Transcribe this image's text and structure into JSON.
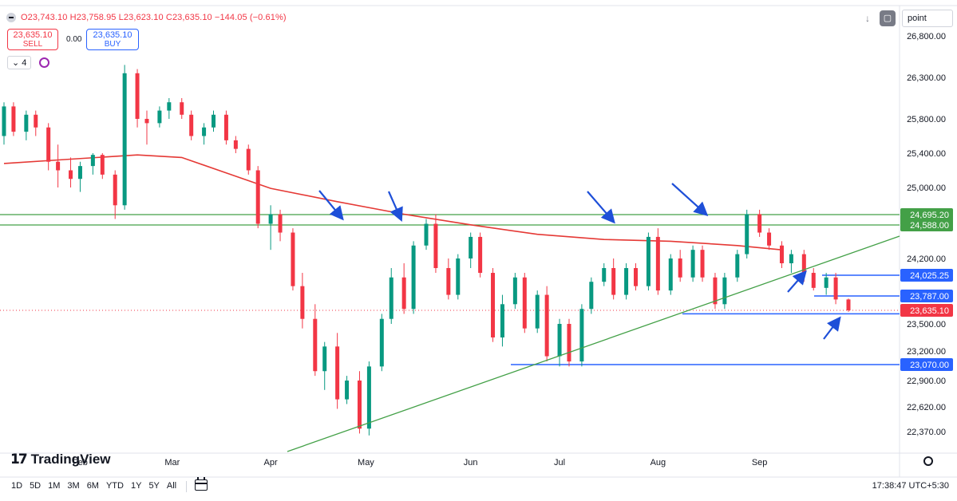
{
  "header": {
    "ohlc": "O23,743.10 H23,758.95 L23,623.10 C23,635.10 −144.05 (−0.61%)",
    "sell_price": "23,635.10",
    "sell_label": "SELL",
    "spread": "0.00",
    "buy_price": "23,635.10",
    "buy_label": "BUY",
    "indicator_count": "4",
    "scale_select": "point"
  },
  "logo_text": "TradingView",
  "ranges": [
    "1D",
    "5D",
    "1M",
    "3M",
    "6M",
    "YTD",
    "1Y",
    "5Y",
    "All"
  ],
  "clock": "17:38:47 UTC+5:30",
  "colors": {
    "up": "#089981",
    "down": "#f23645",
    "ma": "#e53935",
    "support": "#2962ff",
    "resistance": "#43a047",
    "trend": "#43a047",
    "arrow": "#1e4fd8"
  },
  "chart_data": {
    "type": "candlestick",
    "y_ticks": [
      "26,800.00",
      "26,300.00",
      "25,800.00",
      "25,400.00",
      "25,000.00",
      "24,200.00",
      "23,500.00",
      "23,200.00",
      "22,900.00",
      "22,620.00",
      "22,370.00"
    ],
    "x_ticks": [
      {
        "label": "Feb",
        "date": "2024-02-01"
      },
      {
        "label": "Mar",
        "date": "2024-03-01"
      },
      {
        "label": "Apr",
        "date": "2024-04-01"
      },
      {
        "label": "May",
        "date": "2024-05-01"
      },
      {
        "label": "Jun",
        "date": "2024-06-03"
      },
      {
        "label": "Jul",
        "date": "2024-07-01"
      },
      {
        "label": "Aug",
        "date": "2024-08-01"
      },
      {
        "label": "Sep",
        "date": "2024-09-02"
      }
    ],
    "price_labels": [
      {
        "value": "24,695.20",
        "kind": "resistance"
      },
      {
        "value": "24,588.00",
        "kind": "resistance"
      },
      {
        "value": "24,025.25",
        "kind": "support"
      },
      {
        "value": "23,787.00",
        "kind": "support"
      },
      {
        "value": "23,635.10",
        "kind": "last"
      },
      {
        "value": "23,070.00",
        "kind": "support"
      }
    ],
    "last_price": 23635.1,
    "ma_200": [
      {
        "date": "2024-01-08",
        "value": 25280
      },
      {
        "date": "2024-01-29",
        "value": 25330
      },
      {
        "date": "2024-02-19",
        "value": 25380
      },
      {
        "date": "2024-03-04",
        "value": 25350
      },
      {
        "date": "2024-03-18",
        "value": 25170
      },
      {
        "date": "2024-04-01",
        "value": 24990
      },
      {
        "date": "2024-04-22",
        "value": 24840
      },
      {
        "date": "2024-05-13",
        "value": 24700
      },
      {
        "date": "2024-06-03",
        "value": 24590
      },
      {
        "date": "2024-06-24",
        "value": 24480
      },
      {
        "date": "2024-07-15",
        "value": 24420
      },
      {
        "date": "2024-08-05",
        "value": 24400
      },
      {
        "date": "2024-08-26",
        "value": 24350
      },
      {
        "date": "2024-09-09",
        "value": 24300
      }
    ],
    "candles": [
      {
        "date": "2024-01-08",
        "o": 25600,
        "h": 26000,
        "l": 25500,
        "c": 25950
      },
      {
        "date": "2024-01-11",
        "o": 25950,
        "h": 26000,
        "l": 25600,
        "c": 25650
      },
      {
        "date": "2024-01-15",
        "o": 25650,
        "h": 25900,
        "l": 25550,
        "c": 25850
      },
      {
        "date": "2024-01-18",
        "o": 25850,
        "h": 25900,
        "l": 25600,
        "c": 25700
      },
      {
        "date": "2024-01-22",
        "o": 25700,
        "h": 25750,
        "l": 25200,
        "c": 25300
      },
      {
        "date": "2024-01-25",
        "o": 25300,
        "h": 25500,
        "l": 25000,
        "c": 25200
      },
      {
        "date": "2024-01-29",
        "o": 25200,
        "h": 25350,
        "l": 25000,
        "c": 25100
      },
      {
        "date": "2024-02-01",
        "o": 25100,
        "h": 25300,
        "l": 24950,
        "c": 25250
      },
      {
        "date": "2024-02-05",
        "o": 25250,
        "h": 25400,
        "l": 25150,
        "c": 25380
      },
      {
        "date": "2024-02-08",
        "o": 25380,
        "h": 25400,
        "l": 25100,
        "c": 25150
      },
      {
        "date": "2024-02-12",
        "o": 25150,
        "h": 25200,
        "l": 24650,
        "c": 24800
      },
      {
        "date": "2024-02-15",
        "o": 24800,
        "h": 26450,
        "l": 24750,
        "c": 26350
      },
      {
        "date": "2024-02-19",
        "o": 26350,
        "h": 26400,
        "l": 25700,
        "c": 25800
      },
      {
        "date": "2024-02-22",
        "o": 25800,
        "h": 25900,
        "l": 25500,
        "c": 25750
      },
      {
        "date": "2024-02-26",
        "o": 25750,
        "h": 25950,
        "l": 25700,
        "c": 25900
      },
      {
        "date": "2024-02-29",
        "o": 25900,
        "h": 26050,
        "l": 25800,
        "c": 26000
      },
      {
        "date": "2024-03-04",
        "o": 26000,
        "h": 26050,
        "l": 25800,
        "c": 25850
      },
      {
        "date": "2024-03-07",
        "o": 25850,
        "h": 25900,
        "l": 25550,
        "c": 25600
      },
      {
        "date": "2024-03-11",
        "o": 25600,
        "h": 25750,
        "l": 25500,
        "c": 25700
      },
      {
        "date": "2024-03-14",
        "o": 25700,
        "h": 25900,
        "l": 25650,
        "c": 25850
      },
      {
        "date": "2024-03-18",
        "o": 25850,
        "h": 25900,
        "l": 25500,
        "c": 25550
      },
      {
        "date": "2024-03-21",
        "o": 25550,
        "h": 25600,
        "l": 25400,
        "c": 25450
      },
      {
        "date": "2024-03-25",
        "o": 25450,
        "h": 25500,
        "l": 25150,
        "c": 25200
      },
      {
        "date": "2024-03-28",
        "o": 25200,
        "h": 25250,
        "l": 24550,
        "c": 24600
      },
      {
        "date": "2024-04-01",
        "o": 24600,
        "h": 24800,
        "l": 24300,
        "c": 24700
      },
      {
        "date": "2024-04-04",
        "o": 24700,
        "h": 24750,
        "l": 24400,
        "c": 24500
      },
      {
        "date": "2024-04-08",
        "o": 24500,
        "h": 24550,
        "l": 23850,
        "c": 23900
      },
      {
        "date": "2024-04-11",
        "o": 23900,
        "h": 24050,
        "l": 23450,
        "c": 23550
      },
      {
        "date": "2024-04-15",
        "o": 23550,
        "h": 23700,
        "l": 22950,
        "c": 23000
      },
      {
        "date": "2024-04-18",
        "o": 23000,
        "h": 23300,
        "l": 22800,
        "c": 23250
      },
      {
        "date": "2024-04-22",
        "o": 23250,
        "h": 23400,
        "l": 22600,
        "c": 22700
      },
      {
        "date": "2024-04-25",
        "o": 22700,
        "h": 22950,
        "l": 22650,
        "c": 22900
      },
      {
        "date": "2024-04-29",
        "o": 22900,
        "h": 23000,
        "l": 22350,
        "c": 22400
      },
      {
        "date": "2024-05-02",
        "o": 22400,
        "h": 23100,
        "l": 22330,
        "c": 23050
      },
      {
        "date": "2024-05-06",
        "o": 23050,
        "h": 23600,
        "l": 23000,
        "c": 23550
      },
      {
        "date": "2024-05-09",
        "o": 23550,
        "h": 24100,
        "l": 23500,
        "c": 24000
      },
      {
        "date": "2024-05-13",
        "o": 24000,
        "h": 24150,
        "l": 23600,
        "c": 23650
      },
      {
        "date": "2024-05-16",
        "o": 23650,
        "h": 24400,
        "l": 23600,
        "c": 24350
      },
      {
        "date": "2024-05-20",
        "o": 24350,
        "h": 24650,
        "l": 24300,
        "c": 24600
      },
      {
        "date": "2024-05-23",
        "o": 24600,
        "h": 24700,
        "l": 24050,
        "c": 24100
      },
      {
        "date": "2024-05-27",
        "o": 24100,
        "h": 24200,
        "l": 23750,
        "c": 23800
      },
      {
        "date": "2024-05-30",
        "o": 23800,
        "h": 24250,
        "l": 23750,
        "c": 24200
      },
      {
        "date": "2024-06-03",
        "o": 24200,
        "h": 24500,
        "l": 24100,
        "c": 24450
      },
      {
        "date": "2024-06-06",
        "o": 24450,
        "h": 24500,
        "l": 24000,
        "c": 24050
      },
      {
        "date": "2024-06-10",
        "o": 24050,
        "h": 24100,
        "l": 23300,
        "c": 23350
      },
      {
        "date": "2024-06-13",
        "o": 23350,
        "h": 23800,
        "l": 23250,
        "c": 23700
      },
      {
        "date": "2024-06-17",
        "o": 23700,
        "h": 24050,
        "l": 23650,
        "c": 24000
      },
      {
        "date": "2024-06-20",
        "o": 24000,
        "h": 24050,
        "l": 23400,
        "c": 23450
      },
      {
        "date": "2024-06-24",
        "o": 23450,
        "h": 23850,
        "l": 23400,
        "c": 23800
      },
      {
        "date": "2024-06-27",
        "o": 23800,
        "h": 23900,
        "l": 23100,
        "c": 23150
      },
      {
        "date": "2024-07-01",
        "o": 23150,
        "h": 23550,
        "l": 23050,
        "c": 23500
      },
      {
        "date": "2024-07-04",
        "o": 23500,
        "h": 23550,
        "l": 23050,
        "c": 23100
      },
      {
        "date": "2024-07-08",
        "o": 23100,
        "h": 23700,
        "l": 23050,
        "c": 23650
      },
      {
        "date": "2024-07-11",
        "o": 23650,
        "h": 24000,
        "l": 23600,
        "c": 23950
      },
      {
        "date": "2024-07-15",
        "o": 23950,
        "h": 24150,
        "l": 23900,
        "c": 24100
      },
      {
        "date": "2024-07-18",
        "o": 24100,
        "h": 24200,
        "l": 23750,
        "c": 23800
      },
      {
        "date": "2024-07-22",
        "o": 23800,
        "h": 24150,
        "l": 23750,
        "c": 24100
      },
      {
        "date": "2024-07-25",
        "o": 24100,
        "h": 24150,
        "l": 23850,
        "c": 23900
      },
      {
        "date": "2024-07-29",
        "o": 23900,
        "h": 24500,
        "l": 23850,
        "c": 24450
      },
      {
        "date": "2024-08-01",
        "o": 24450,
        "h": 24550,
        "l": 23800,
        "c": 23850
      },
      {
        "date": "2024-08-05",
        "o": 23850,
        "h": 24250,
        "l": 23800,
        "c": 24200
      },
      {
        "date": "2024-08-08",
        "o": 24200,
        "h": 24300,
        "l": 23950,
        "c": 24000
      },
      {
        "date": "2024-08-12",
        "o": 24000,
        "h": 24350,
        "l": 23950,
        "c": 24300
      },
      {
        "date": "2024-08-15",
        "o": 24300,
        "h": 24350,
        "l": 23950,
        "c": 24000
      },
      {
        "date": "2024-08-19",
        "o": 24000,
        "h": 24050,
        "l": 23650,
        "c": 23700
      },
      {
        "date": "2024-08-22",
        "o": 23700,
        "h": 24050,
        "l": 23650,
        "c": 24000
      },
      {
        "date": "2024-08-26",
        "o": 24000,
        "h": 24300,
        "l": 23950,
        "c": 24250
      },
      {
        "date": "2024-08-29",
        "o": 24250,
        "h": 24750,
        "l": 24200,
        "c": 24700
      },
      {
        "date": "2024-09-02",
        "o": 24700,
        "h": 24750,
        "l": 24450,
        "c": 24500
      },
      {
        "date": "2024-09-05",
        "o": 24500,
        "h": 24550,
        "l": 24300,
        "c": 24350
      },
      {
        "date": "2024-09-09",
        "o": 24350,
        "h": 24400,
        "l": 24100,
        "c": 24150
      },
      {
        "date": "2024-09-12",
        "o": 24150,
        "h": 24300,
        "l": 24050,
        "c": 24250
      },
      {
        "date": "2024-09-16",
        "o": 24250,
        "h": 24300,
        "l": 23950,
        "c": 24050
      },
      {
        "date": "2024-09-19",
        "o": 24050,
        "h": 24100,
        "l": 23850,
        "c": 23880
      },
      {
        "date": "2024-09-23",
        "o": 23880,
        "h": 24050,
        "l": 23800,
        "c": 24000
      },
      {
        "date": "2024-09-26",
        "o": 24000,
        "h": 24050,
        "l": 23700,
        "c": 23750
      },
      {
        "date": "2024-09-30",
        "o": 23750,
        "h": 23760,
        "l": 23620,
        "c": 23635
      }
    ]
  }
}
